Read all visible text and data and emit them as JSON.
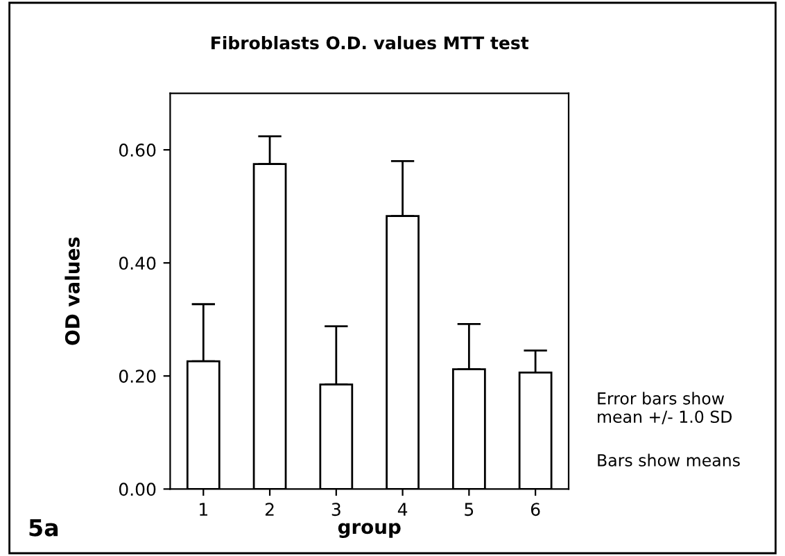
{
  "chart_data": {
    "type": "bar",
    "title": "Fibroblasts O.D. values MTT test",
    "xlabel": "group",
    "ylabel": "OD values",
    "categories": [
      "1",
      "2",
      "3",
      "4",
      "5",
      "6"
    ],
    "values": [
      0.226,
      0.575,
      0.185,
      0.483,
      0.212,
      0.206
    ],
    "errors": [
      [
        0.226,
        0.327
      ],
      [
        0.575,
        0.624
      ],
      [
        0.185,
        0.288
      ],
      [
        0.483,
        0.58
      ],
      [
        0.212,
        0.292
      ],
      [
        0.206,
        0.245
      ]
    ],
    "color": "#ffffff",
    "ylim": [
      0,
      0.7
    ],
    "yticks": [
      {
        "value": 0,
        "label": "0.00"
      },
      {
        "value": 0.2,
        "label": "0.20"
      },
      {
        "value": 0.4,
        "label": "0.40"
      },
      {
        "value": 0.6,
        "label": "0.60"
      }
    ],
    "grid": false,
    "annotations": [
      "Error bars show\nmean +/- 1.0 SD",
      "Bars show means",
      "5a"
    ]
  }
}
